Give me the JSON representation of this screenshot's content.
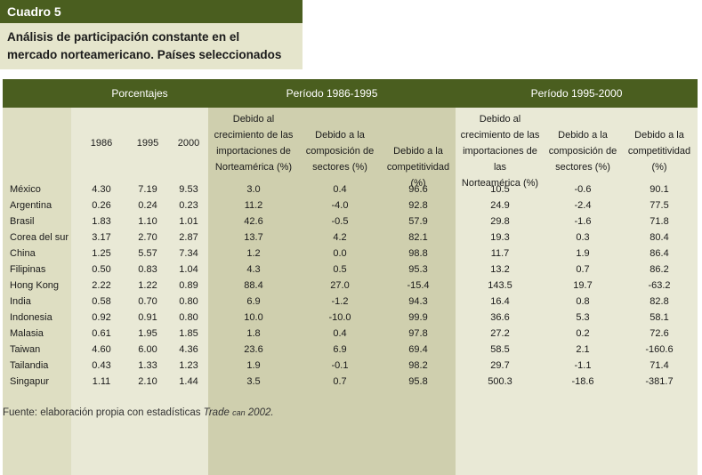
{
  "header": {
    "label": "Cuadro 5",
    "title_line1": "Análisis de participación constante en el",
    "title_line2": "mercado norteamericano.  Países seleccionados"
  },
  "groups": {
    "porcentajes": "Porcentajes",
    "period1": "Período 1986-1995",
    "period2": "Período 1995-2000"
  },
  "columns": {
    "y1986": "1986",
    "y1995": "1995",
    "y2000": "2000",
    "p1_growth": [
      "Debido al",
      "crecimiento de las",
      "importaciones de",
      "Norteamérica (%)"
    ],
    "p1_comp": [
      "Debido a la",
      "composición de",
      "sectores (%)"
    ],
    "p1_compet": [
      "Debido a la",
      "competitividad (%)"
    ],
    "p2_growth": [
      "Debido al",
      "crecimiento de las",
      "importaciones de las",
      "Norteamérica (%)"
    ],
    "p2_comp": [
      "Debido a la",
      "composición de",
      "sectores (%)"
    ],
    "p2_compet": [
      "Debido a la",
      "competitividad",
      "(%)"
    ]
  },
  "rows": [
    {
      "country": "México",
      "v1986": "4.30",
      "v1995": "7.19",
      "v2000": "9.53",
      "p1a": "3.0",
      "p1b": "0.4",
      "p1c": "96.6",
      "p2a": "10.5",
      "p2b": "-0.6",
      "p2c": "90.1"
    },
    {
      "country": "Argentina",
      "v1986": "0.26",
      "v1995": "0.24",
      "v2000": "0.23",
      "p1a": "11.2",
      "p1b": "-4.0",
      "p1c": "92.8",
      "p2a": "24.9",
      "p2b": "-2.4",
      "p2c": "77.5"
    },
    {
      "country": "Brasil",
      "v1986": "1.83",
      "v1995": "1.10",
      "v2000": "1.01",
      "p1a": "42.6",
      "p1b": "-0.5",
      "p1c": "57.9",
      "p2a": "29.8",
      "p2b": "-1.6",
      "p2c": "71.8"
    },
    {
      "country": "Corea del sur",
      "v1986": "3.17",
      "v1995": "2.70",
      "v2000": "2.87",
      "p1a": "13.7",
      "p1b": "4.2",
      "p1c": "82.1",
      "p2a": "19.3",
      "p2b": "0.3",
      "p2c": "80.4"
    },
    {
      "country": "China",
      "v1986": "1.25",
      "v1995": "5.57",
      "v2000": "7.34",
      "p1a": "1.2",
      "p1b": "0.0",
      "p1c": "98.8",
      "p2a": "11.7",
      "p2b": "1.9",
      "p2c": "86.4"
    },
    {
      "country": "Filipinas",
      "v1986": "0.50",
      "v1995": "0.83",
      "v2000": "1.04",
      "p1a": "4.3",
      "p1b": "0.5",
      "p1c": "95.3",
      "p2a": "13.2",
      "p2b": "0.7",
      "p2c": "86.2"
    },
    {
      "country": "Hong Kong",
      "v1986": "2.22",
      "v1995": "1.22",
      "v2000": "0.89",
      "p1a": "88.4",
      "p1b": "27.0",
      "p1c": "-15.4",
      "p2a": "143.5",
      "p2b": "19.7",
      "p2c": "-63.2"
    },
    {
      "country": "India",
      "v1986": "0.58",
      "v1995": "0.70",
      "v2000": "0.80",
      "p1a": "6.9",
      "p1b": "-1.2",
      "p1c": "94.3",
      "p2a": "16.4",
      "p2b": "0.8",
      "p2c": "82.8"
    },
    {
      "country": "Indonesia",
      "v1986": "0.92",
      "v1995": "0.91",
      "v2000": "0.80",
      "p1a": "10.0",
      "p1b": "-10.0",
      "p1c": "99.9",
      "p2a": "36.6",
      "p2b": "5.3",
      "p2c": "58.1"
    },
    {
      "country": "Malasia",
      "v1986": "0.61",
      "v1995": "1.95",
      "v2000": "1.85",
      "p1a": "1.8",
      "p1b": "0.4",
      "p1c": "97.8",
      "p2a": "27.2",
      "p2b": "0.2",
      "p2c": "72.6"
    },
    {
      "country": "Taiwan",
      "v1986": "4.60",
      "v1995": "6.00",
      "v2000": "4.36",
      "p1a": "23.6",
      "p1b": "6.9",
      "p1c": "69.4",
      "p2a": "58.5",
      "p2b": "2.1",
      "p2c": "-160.6"
    },
    {
      "country": "Tailandia",
      "v1986": "0.43",
      "v1995": "1.33",
      "v2000": "1.23",
      "p1a": "1.9",
      "p1b": "-0.1",
      "p1c": "98.2",
      "p2a": "29.7",
      "p2b": "-1.1",
      "p2c": "71.4"
    },
    {
      "country": "Singapur",
      "v1986": "1.11",
      "v1995": "2.10",
      "v2000": "1.44",
      "p1a": "3.5",
      "p1b": "0.7",
      "p1c": "95.8",
      "p2a": "500.3",
      "p2b": "-18.6",
      "p2c": "-381.7"
    }
  ],
  "source": {
    "prefix": "Fuente: elaboración propia con estadísticas ",
    "italic": "Trade ",
    "smallcaps": "can",
    "suffix": " 2002."
  }
}
